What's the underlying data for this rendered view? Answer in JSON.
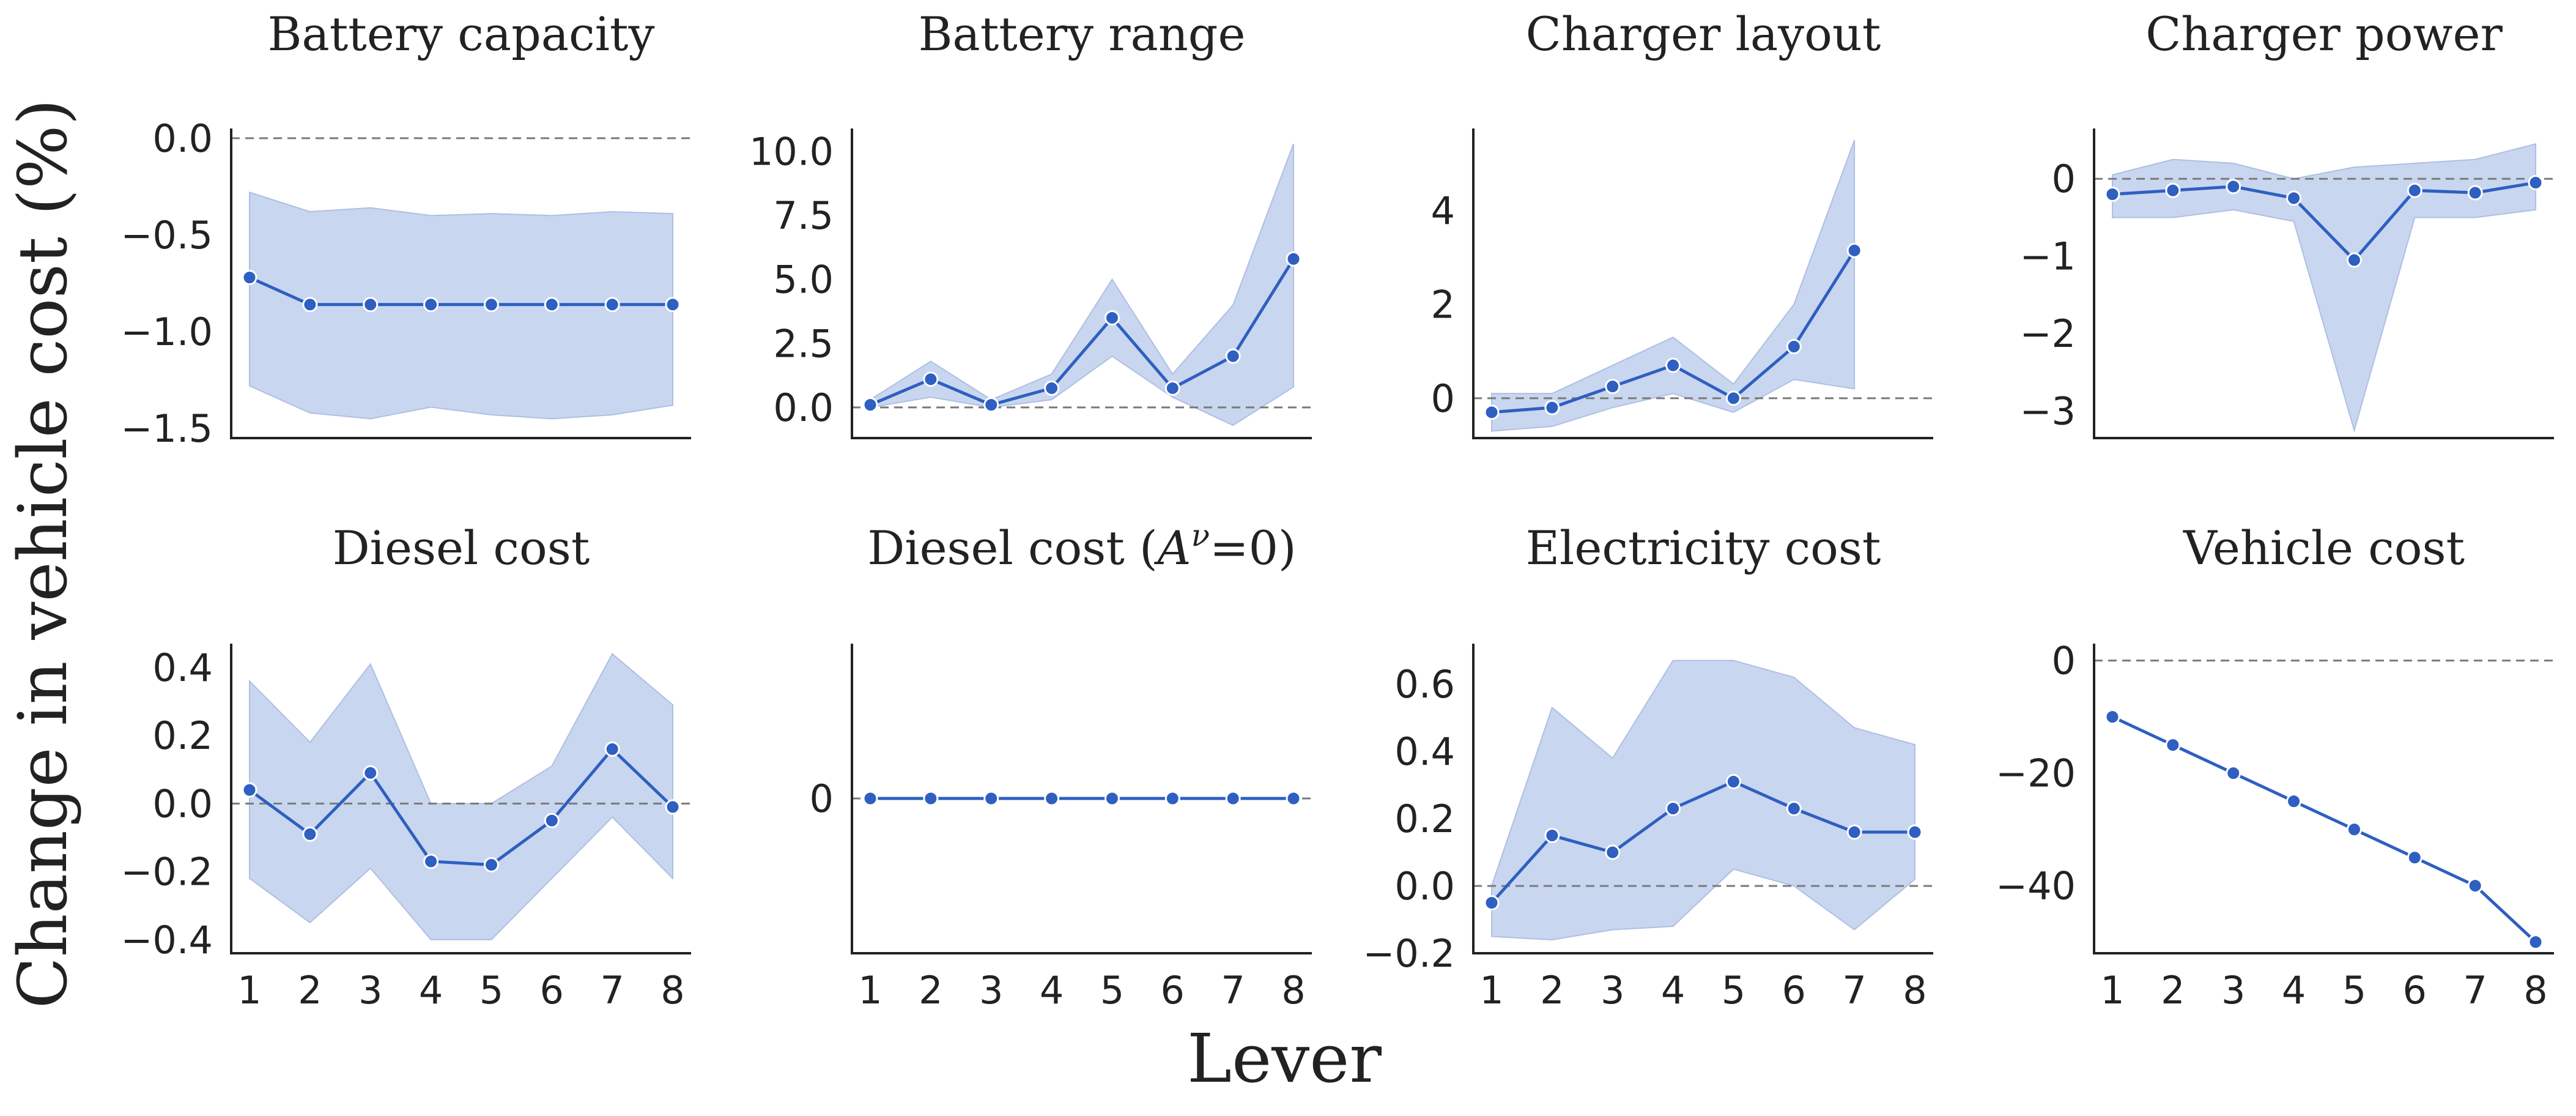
{
  "chart_data": {
    "type": "line",
    "ylabel": "Change in vehicle cost (%)",
    "xlabel": "Lever",
    "x_ticks": [
      "1",
      "2",
      "3",
      "4",
      "5",
      "6",
      "7",
      "8"
    ],
    "colors": {
      "line": "#2e5fc1",
      "band": "#c9d6ef",
      "band_edge": "#aebfe4",
      "zero_line": "#7a7a7a"
    },
    "panels": [
      {
        "title": "Battery capacity",
        "x": [
          1,
          2,
          3,
          4,
          5,
          6,
          7,
          8
        ],
        "mean": [
          -0.72,
          -0.86,
          -0.86,
          -0.86,
          -0.86,
          -0.86,
          -0.86,
          -0.86
        ],
        "lower": [
          -1.28,
          -1.42,
          -1.45,
          -1.39,
          -1.43,
          -1.45,
          -1.43,
          -1.38
        ],
        "upper": [
          -0.28,
          -0.38,
          -0.36,
          -0.4,
          -0.39,
          -0.4,
          -0.38,
          -0.39
        ],
        "ylim": [
          -1.55,
          0.05
        ],
        "yticks": [
          0.0,
          -0.5,
          -1.0,
          -1.5
        ],
        "ytick_labels": [
          "0.0",
          "−0.5",
          "−1.0",
          "−1.5"
        ]
      },
      {
        "title": "Battery range",
        "x": [
          1,
          2,
          3,
          4,
          5,
          6,
          7,
          8
        ],
        "mean": [
          0.1,
          1.1,
          0.1,
          0.75,
          3.5,
          0.75,
          2.0,
          5.8
        ],
        "lower": [
          0.0,
          0.4,
          0.0,
          0.3,
          2.0,
          0.4,
          -0.7,
          0.8
        ],
        "upper": [
          0.3,
          1.8,
          0.3,
          1.3,
          5.0,
          1.3,
          4.0,
          10.3
        ],
        "ylim": [
          -1.2,
          10.9
        ],
        "yticks": [
          0.0,
          2.5,
          5.0,
          7.5,
          10.0
        ],
        "ytick_labels": [
          "0.0",
          "2.5",
          "5.0",
          "7.5",
          "10.0"
        ]
      },
      {
        "title": "Charger layout",
        "x": [
          1,
          2,
          3,
          4,
          5,
          6,
          7
        ],
        "mean": [
          -0.3,
          -0.2,
          0.25,
          0.7,
          0.0,
          1.1,
          3.15
        ],
        "lower": [
          -0.7,
          -0.6,
          -0.2,
          0.1,
          -0.3,
          0.4,
          0.2
        ],
        "upper": [
          0.1,
          0.1,
          0.7,
          1.3,
          0.3,
          2.0,
          5.5
        ],
        "ylim": [
          -0.85,
          5.75
        ],
        "yticks": [
          0,
          2,
          4
        ],
        "ytick_labels": [
          "0",
          "2",
          "4"
        ]
      },
      {
        "title": "Charger power",
        "x": [
          1,
          2,
          3,
          4,
          5,
          6,
          7,
          8
        ],
        "mean": [
          -0.2,
          -0.15,
          -0.1,
          -0.25,
          -1.05,
          -0.15,
          -0.18,
          -0.05
        ],
        "lower": [
          -0.5,
          -0.5,
          -0.4,
          -0.55,
          -3.25,
          -0.5,
          -0.5,
          -0.4
        ],
        "upper": [
          0.05,
          0.25,
          0.2,
          0.0,
          0.15,
          0.2,
          0.25,
          0.45
        ],
        "ylim": [
          -3.35,
          0.65
        ],
        "yticks": [
          0,
          -1,
          -2,
          -3
        ],
        "ytick_labels": [
          "0",
          "−1",
          "−2",
          "−3"
        ]
      },
      {
        "title": "Diesel cost",
        "x": [
          1,
          2,
          3,
          4,
          5,
          6,
          7,
          8
        ],
        "mean": [
          0.04,
          -0.09,
          0.09,
          -0.17,
          -0.18,
          -0.05,
          0.16,
          -0.01
        ],
        "lower": [
          -0.22,
          -0.35,
          -0.19,
          -0.4,
          -0.4,
          -0.22,
          -0.04,
          -0.22
        ],
        "upper": [
          0.36,
          0.18,
          0.41,
          0.0,
          0.0,
          0.11,
          0.44,
          0.29
        ],
        "ylim": [
          -0.44,
          0.47
        ],
        "yticks": [
          0.4,
          0.2,
          0.0,
          -0.2,
          -0.4
        ],
        "ytick_labels": [
          "0.4",
          "0.2",
          "0.0",
          "−0.2",
          "−0.4"
        ]
      },
      {
        "title": "Diesel cost (Aν=0)",
        "title_base": "Diesel cost (",
        "title_math": "A",
        "title_sup": "ν",
        "title_tail": "=0)",
        "x": [
          1,
          2,
          3,
          4,
          5,
          6,
          7,
          8
        ],
        "mean": [
          0,
          0,
          0,
          0,
          0,
          0,
          0,
          0
        ],
        "lower": [
          0,
          0,
          0,
          0,
          0,
          0,
          0,
          0
        ],
        "upper": [
          0,
          0,
          0,
          0,
          0,
          0,
          0,
          0
        ],
        "ylim": [
          -1.0,
          1.0
        ],
        "yticks": [
          0
        ],
        "ytick_labels": [
          "0"
        ]
      },
      {
        "title": "Electricity cost",
        "x": [
          1,
          2,
          3,
          4,
          5,
          6,
          7,
          8
        ],
        "mean": [
          -0.05,
          0.15,
          0.1,
          0.23,
          0.31,
          0.23,
          0.16,
          0.16
        ],
        "lower": [
          -0.15,
          -0.16,
          -0.13,
          -0.12,
          0.05,
          0.0,
          -0.13,
          0.02
        ],
        "upper": [
          0.0,
          0.53,
          0.38,
          0.67,
          0.67,
          0.62,
          0.47,
          0.42
        ],
        "ylim": [
          -0.2,
          0.72
        ],
        "yticks": [
          0.6,
          0.4,
          0.2,
          0.0,
          -0.2
        ],
        "ytick_labels": [
          "0.6",
          "0.4",
          "0.2",
          "0.0",
          "−0.2"
        ]
      },
      {
        "title": "Vehicle cost",
        "x": [
          1,
          2,
          3,
          4,
          5,
          6,
          7,
          8
        ],
        "mean": [
          -10,
          -15,
          -20,
          -25,
          -30,
          -35,
          -40,
          -50
        ],
        "lower": [
          -10,
          -15,
          -20,
          -25,
          -30,
          -35,
          -40,
          -50
        ],
        "upper": [
          -10,
          -15,
          -20,
          -25,
          -30,
          -35,
          -40,
          -50
        ],
        "ylim": [
          -52,
          3
        ],
        "yticks": [
          0,
          -20,
          -40
        ],
        "ytick_labels": [
          "0",
          "−20",
          "−40"
        ]
      }
    ]
  }
}
